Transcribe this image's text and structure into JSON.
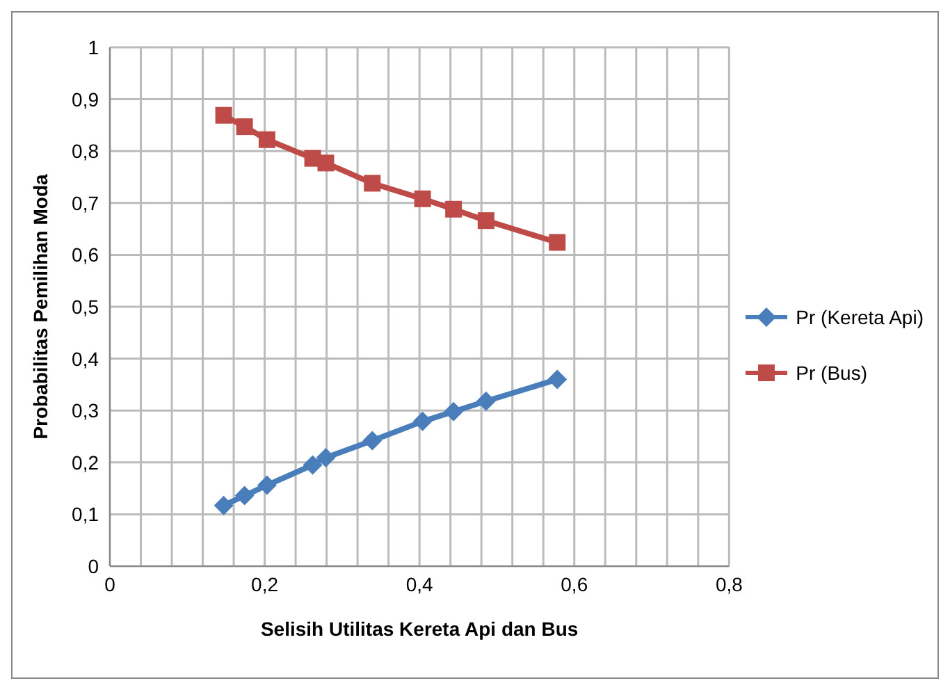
{
  "chart_data": {
    "type": "line",
    "xlabel": "Selisih Utilitas Kereta Api dan Bus",
    "ylabel": "Probabilitas Pemilihan Moda",
    "xlim": [
      0,
      0.8
    ],
    "ylim": [
      0,
      1
    ],
    "xticks": [
      0,
      {
        "value": 0.04,
        "label": null
      },
      {
        "value": 0.08,
        "label": null
      },
      {
        "value": 0.12,
        "label": null
      },
      {
        "value": 0.16,
        "label": null
      },
      {
        "value": 0.2,
        "label": "0,2"
      },
      {
        "value": 0.24,
        "label": null
      },
      {
        "value": 0.28,
        "label": null
      },
      {
        "value": 0.32,
        "label": null
      },
      {
        "value": 0.36,
        "label": null
      },
      {
        "value": 0.4,
        "label": "0,4"
      },
      {
        "value": 0.44,
        "label": null
      },
      {
        "value": 0.48,
        "label": null
      },
      {
        "value": 0.52,
        "label": null
      },
      {
        "value": 0.56,
        "label": null
      },
      {
        "value": 0.6,
        "label": "0,6"
      },
      {
        "value": 0.64,
        "label": null
      },
      {
        "value": 0.68,
        "label": null
      },
      {
        "value": 0.72,
        "label": null
      },
      {
        "value": 0.76,
        "label": null
      },
      {
        "value": 0.8,
        "label": "0,8"
      }
    ],
    "yticks": [
      0,
      {
        "value": 0.1,
        "label": "0,1"
      },
      {
        "value": 0.2,
        "label": "0,2"
      },
      {
        "value": 0.3,
        "label": "0,3"
      },
      {
        "value": 0.4,
        "label": "0,4"
      },
      {
        "value": 0.5,
        "label": "0,5"
      },
      {
        "value": 0.6,
        "label": "0,6"
      },
      {
        "value": 0.7,
        "label": "0,7"
      },
      {
        "value": 0.8,
        "label": "0,8"
      },
      {
        "value": 0.9,
        "label": "0,9"
      },
      1
    ],
    "x": [
      0.147,
      0.174,
      0.203,
      0.262,
      0.279,
      0.339,
      0.404,
      0.444,
      0.486,
      0.578
    ],
    "series": [
      {
        "name": "Pr (Kereta Api)",
        "color": "#4a7ebb",
        "marker": "diamond",
        "values": [
          0.117,
          0.136,
          0.156,
          0.195,
          0.209,
          0.242,
          0.279,
          0.298,
          0.318,
          0.36
        ]
      },
      {
        "name": "Pr (Bus)",
        "color": "#be4b48",
        "marker": "square",
        "values": [
          0.869,
          0.847,
          0.822,
          0.786,
          0.777,
          0.738,
          0.708,
          0.688,
          0.666,
          0.624
        ]
      }
    ],
    "grid": true,
    "legend": "right",
    "line_style": "solid"
  }
}
